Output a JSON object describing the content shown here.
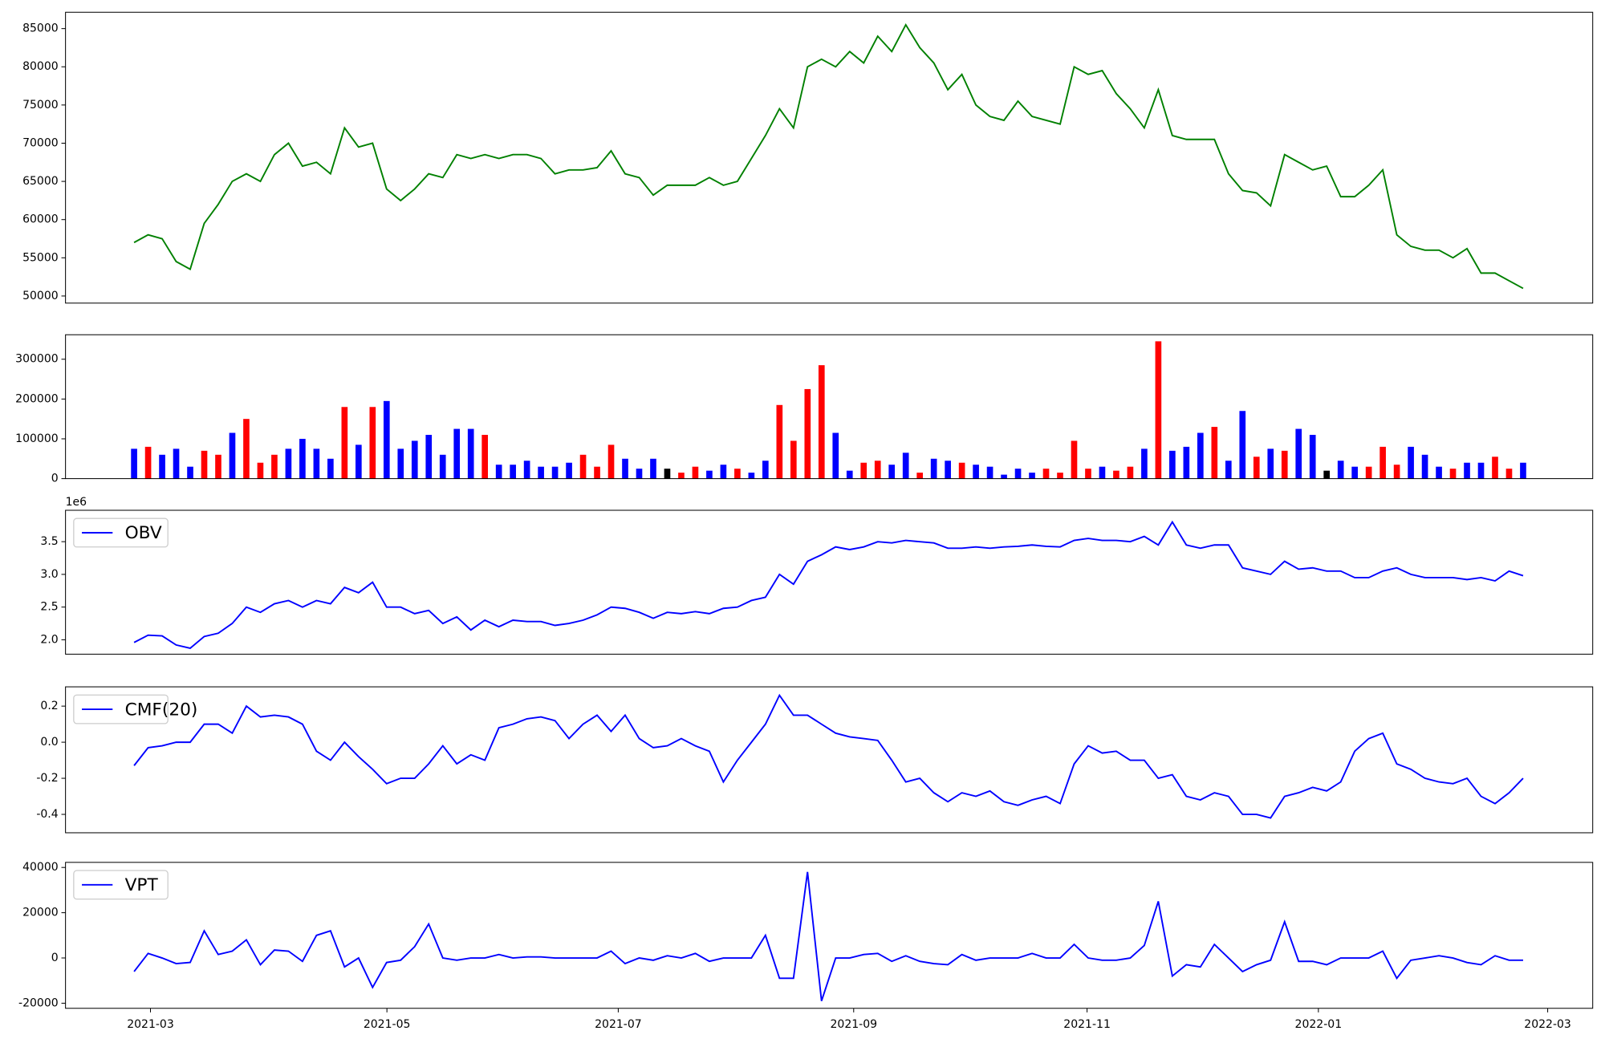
{
  "chart_data": [
    {
      "type": "line",
      "ylim": [
        49070,
        87140
      ],
      "yticks": [
        50000,
        55000,
        60000,
        65000,
        70000,
        75000,
        80000,
        85000
      ],
      "series": [
        {
          "color": "#008000",
          "values": [
            57000,
            58000,
            57500,
            54500,
            53500,
            59500,
            62000,
            65000,
            66000,
            65000,
            68500,
            70000,
            67000,
            67500,
            66000,
            72000,
            69500,
            70000,
            64000,
            62500,
            64000,
            66000,
            65500,
            68500,
            68000,
            68500,
            68000,
            68500,
            68500,
            68000,
            66000,
            66500,
            66500,
            66800,
            69000,
            66000,
            65500,
            63200,
            64500,
            64500,
            64500,
            65500,
            64500,
            65000,
            68000,
            71000,
            74500,
            72000,
            80000,
            81000,
            80000,
            82000,
            80500,
            84000,
            82000,
            85500,
            82500,
            80500,
            77000,
            79000,
            75000,
            73500,
            73000,
            75500,
            73500,
            73000,
            72500,
            80000,
            79000,
            79500,
            76500,
            74500,
            72000,
            77000,
            71000,
            70500,
            70500,
            70500,
            66000,
            63800,
            63500,
            61800,
            68500,
            67500,
            66500,
            67000,
            63000,
            63000,
            64500,
            66500,
            58000,
            56500,
            56000,
            56000,
            55000,
            56200,
            53000,
            53000,
            52000,
            51000
          ]
        }
      ]
    },
    {
      "type": "bar",
      "ylim": [
        0,
        361500
      ],
      "yticks": [
        0,
        100000,
        200000,
        300000
      ],
      "values": [
        75000,
        80000,
        60000,
        75000,
        30000,
        70000,
        60000,
        115000,
        150000,
        40000,
        60000,
        75000,
        100000,
        75000,
        50000,
        180000,
        85000,
        180000,
        195000,
        75000,
        95000,
        110000,
        60000,
        125000,
        125000,
        110000,
        35000,
        35000,
        45000,
        30000,
        30000,
        40000,
        60000,
        30000,
        85000,
        50000,
        25000,
        50000,
        25000,
        15000,
        30000,
        20000,
        35000,
        25000,
        15000,
        45000,
        185000,
        95000,
        225000,
        285000,
        115000,
        20000,
        40000,
        45000,
        35000,
        65000,
        15000,
        50000,
        45000,
        40000,
        35000,
        30000,
        10000,
        25000,
        15000,
        25000,
        15000,
        95000,
        25000,
        30000,
        20000,
        30000,
        75000,
        345000,
        70000,
        80000,
        115000,
        130000,
        45000,
        170000,
        55000,
        75000,
        70000,
        125000,
        110000,
        20000,
        45000,
        30000,
        30000,
        80000,
        35000,
        80000,
        60000,
        30000,
        25000,
        40000,
        40000,
        55000,
        25000,
        40000
      ],
      "colors": [
        "blue",
        "red",
        "blue",
        "blue",
        "blue",
        "red",
        "red",
        "blue",
        "red",
        "red",
        "red",
        "blue",
        "blue",
        "blue",
        "blue",
        "red",
        "blue",
        "red",
        "blue",
        "blue",
        "blue",
        "blue",
        "blue",
        "blue",
        "blue",
        "red",
        "blue",
        "blue",
        "blue",
        "blue",
        "blue",
        "blue",
        "red",
        "red",
        "red",
        "blue",
        "blue",
        "blue",
        "black",
        "red",
        "red",
        "blue",
        "blue",
        "red",
        "blue",
        "blue",
        "red",
        "red",
        "red",
        "red",
        "blue",
        "blue",
        "red",
        "red",
        "blue",
        "blue",
        "red",
        "blue",
        "blue",
        "red",
        "blue",
        "blue",
        "blue",
        "blue",
        "blue",
        "red",
        "red",
        "red",
        "red",
        "blue",
        "red",
        "red",
        "blue",
        "red",
        "blue",
        "blue",
        "blue",
        "red",
        "blue",
        "blue",
        "red",
        "blue",
        "red",
        "blue",
        "blue",
        "black",
        "blue",
        "blue",
        "red",
        "red",
        "red",
        "blue",
        "blue",
        "blue",
        "red",
        "blue",
        "blue",
        "red",
        "red",
        "blue"
      ]
    },
    {
      "type": "line",
      "y_offset_label": "1e6",
      "ylim": [
        1.78,
        3.98
      ],
      "legend": "upper left",
      "yticks": [
        {
          "value": 2,
          "label": "2.0"
        },
        2.5,
        {
          "value": 3,
          "label": "3.0"
        },
        3.5
      ],
      "series": [
        {
          "name": "OBV",
          "color": "#0000ff",
          "values": [
            1.96,
            2.07,
            2.06,
            1.92,
            1.87,
            2.05,
            2.1,
            2.25,
            2.5,
            2.42,
            2.55,
            2.6,
            2.5,
            2.6,
            2.55,
            2.8,
            2.72,
            2.88,
            2.5,
            2.5,
            2.4,
            2.45,
            2.25,
            2.35,
            2.15,
            2.3,
            2.2,
            2.3,
            2.28,
            2.28,
            2.22,
            2.25,
            2.3,
            2.38,
            2.5,
            2.48,
            2.42,
            2.33,
            2.42,
            2.4,
            2.43,
            2.4,
            2.48,
            2.5,
            2.6,
            2.65,
            3.0,
            2.85,
            3.2,
            3.3,
            3.42,
            3.38,
            3.42,
            3.5,
            3.48,
            3.52,
            3.5,
            3.48,
            3.4,
            3.4,
            3.42,
            3.4,
            3.42,
            3.43,
            3.45,
            3.43,
            3.42,
            3.52,
            3.55,
            3.52,
            3.52,
            3.5,
            3.58,
            3.45,
            3.8,
            3.45,
            3.4,
            3.45,
            3.45,
            3.1,
            3.05,
            3.0,
            3.2,
            3.08,
            3.1,
            3.05,
            3.05,
            2.95,
            2.95,
            3.05,
            3.1,
            3.0,
            2.95,
            2.95,
            2.95,
            2.92,
            2.95,
            2.9,
            3.05,
            2.98
          ]
        }
      ]
    },
    {
      "type": "line",
      "ylim": [
        -0.502,
        0.307
      ],
      "legend": "upper left",
      "yticks": [
        -0.4,
        -0.2,
        {
          "value": 0,
          "label": "0.0"
        },
        0.2
      ],
      "series": [
        {
          "name": "CMF(20)",
          "color": "#0000ff",
          "values": [
            -0.13,
            -0.03,
            -0.02,
            0.0,
            0.0,
            0.1,
            0.1,
            0.05,
            0.2,
            0.14,
            0.15,
            0.14,
            0.1,
            -0.05,
            -0.1,
            0.0,
            -0.08,
            -0.15,
            -0.23,
            -0.2,
            -0.2,
            -0.12,
            -0.02,
            -0.12,
            -0.07,
            -0.1,
            0.08,
            0.1,
            0.13,
            0.14,
            0.12,
            0.02,
            0.1,
            0.15,
            0.06,
            0.15,
            0.02,
            -0.03,
            -0.02,
            0.02,
            -0.02,
            -0.05,
            -0.22,
            -0.1,
            0.0,
            0.1,
            0.26,
            0.15,
            0.15,
            0.1,
            0.05,
            0.03,
            0.02,
            0.01,
            -0.1,
            -0.22,
            -0.2,
            -0.28,
            -0.33,
            -0.28,
            -0.3,
            -0.27,
            -0.33,
            -0.35,
            -0.32,
            -0.3,
            -0.34,
            -0.12,
            -0.02,
            -0.06,
            -0.05,
            -0.1,
            -0.1,
            -0.2,
            -0.18,
            -0.3,
            -0.32,
            -0.28,
            -0.3,
            -0.4,
            -0.4,
            -0.42,
            -0.3,
            -0.28,
            -0.25,
            -0.27,
            -0.22,
            -0.05,
            0.02,
            0.05,
            -0.12,
            -0.15,
            -0.2,
            -0.22,
            -0.23,
            -0.2,
            -0.3,
            -0.34,
            -0.28,
            -0.2
          ]
        }
      ]
    },
    {
      "type": "line",
      "ylim": [
        -22250,
        42250
      ],
      "legend": "upper left",
      "yticks": [
        -20000,
        0,
        20000,
        40000
      ],
      "xticks": [
        "2021-03",
        "2021-05",
        "2021-07",
        "2021-09",
        "2021-11",
        "2022-01",
        "2022-03"
      ],
      "series": [
        {
          "name": "VPT",
          "color": "#0000ff",
          "values": [
            -6000,
            2000,
            0,
            -2500,
            -2000,
            12000,
            1500,
            3000,
            8000,
            -3000,
            3500,
            3000,
            -1500,
            10000,
            12000,
            -4000,
            0,
            -13000,
            -2000,
            -1000,
            5000,
            15000,
            0,
            -1000,
            0,
            0,
            1500,
            0,
            500,
            500,
            0,
            0,
            0,
            0,
            3000,
            -2500,
            0,
            -1000,
            1000,
            0,
            2000,
            -1500,
            0,
            0,
            0,
            10000,
            -9000,
            -9000,
            38000,
            -19000,
            0,
            0,
            1500,
            2000,
            -1500,
            1000,
            -1500,
            -2500,
            -3000,
            1500,
            -1000,
            0,
            0,
            0,
            2000,
            0,
            0,
            6000,
            0,
            -1000,
            -1000,
            0,
            5500,
            25000,
            -8000,
            -3000,
            -4000,
            6000,
            0,
            -6000,
            -3000,
            -1000,
            16000,
            -1500,
            -1500,
            -3000,
            0,
            0,
            0,
            3000,
            -9000,
            -1000,
            0,
            1000,
            0,
            -2000,
            -3000,
            1000,
            -1000,
            -1000
          ]
        }
      ]
    }
  ]
}
